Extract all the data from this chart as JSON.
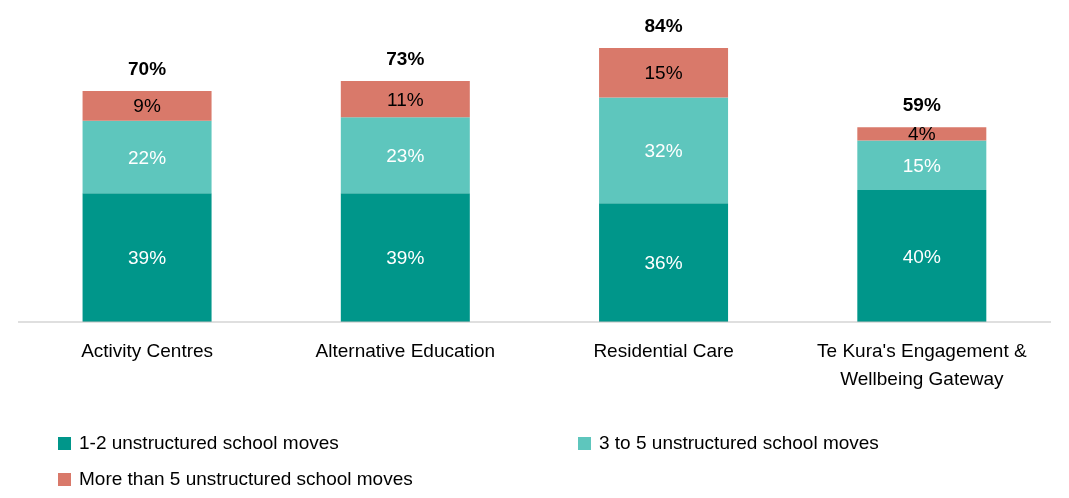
{
  "chart_data": {
    "type": "bar",
    "stacked": true,
    "categories": [
      "Activity Centres",
      "Alternative Education",
      "Residential Care",
      "Te Kura's Engagement & Wellbeing Gateway"
    ],
    "series": [
      {
        "name": "1-2 unstructured school moves",
        "color": "#00968a",
        "values": [
          39,
          39,
          36,
          40
        ],
        "value_labels": [
          "39%",
          "39%",
          "36%",
          "40%"
        ]
      },
      {
        "name": "3 to 5 unstructured school moves",
        "color": "#5ec6bd",
        "values": [
          22,
          23,
          32,
          15
        ],
        "value_labels": [
          "22%",
          "23%",
          "32%",
          "15%"
        ]
      },
      {
        "name": "More than 5 unstructured school moves",
        "color": "#d9796a",
        "values": [
          9,
          11,
          15,
          4
        ],
        "value_labels": [
          "9%",
          "11%",
          "15%",
          "4%"
        ]
      }
    ],
    "totals": [
      "70%",
      "73%",
      "84%",
      "59%"
    ],
    "legend": "bottom",
    "grid": false
  }
}
